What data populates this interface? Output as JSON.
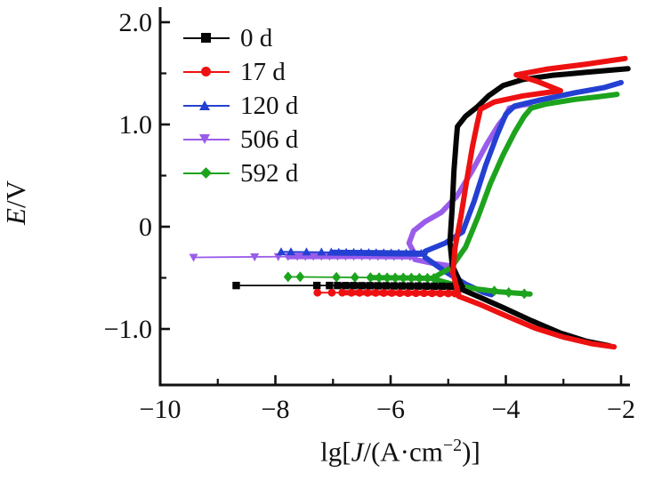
{
  "chart_data": {
    "type": "line",
    "title": "",
    "xlabel": "lg[J/(A·cm⁻²)]",
    "ylabel": "E/V",
    "xlim": [
      -10,
      -2
    ],
    "ylim": [
      -1.55,
      2.1
    ],
    "grid": false,
    "legend_position": "upper-left-inside",
    "x_ticks": {
      "major_values": [
        -10,
        -8,
        -6,
        -4,
        -2
      ],
      "major_labels": [
        "−10",
        "−8",
        "−6",
        "−4",
        "−2"
      ],
      "minor_values": [
        -9,
        -7,
        -5,
        -3
      ]
    },
    "y_ticks": {
      "major_values": [
        2.0,
        1.0,
        0,
        -1.0
      ],
      "major_labels": [
        "2.0",
        "1.0",
        "0",
        "−1.0"
      ],
      "minor_values": [
        1.5,
        0.5,
        -0.5
      ]
    },
    "xlabel_parts": {
      "prefix": "lg[",
      "var": "J",
      "mid": "/(A·cm",
      "sup": "−2",
      "suffix": ")]"
    },
    "ylabel_parts": {
      "var": "E",
      "rest": "/V"
    },
    "series": [
      {
        "label": "506 d",
        "color": "#9a5cea",
        "marker": "tri-down",
        "thin": [
          [
            -9.42,
            -0.3
          ],
          [
            -7.78,
            -0.292
          ]
        ],
        "band": [
          [
            -7.78,
            -0.292
          ],
          [
            -6.6,
            -0.29
          ],
          [
            -5.58,
            -0.295
          ]
        ],
        "anodic": [
          [
            -5.58,
            -0.27
          ],
          [
            -5.68,
            -0.16
          ],
          [
            -5.6,
            -0.04
          ],
          [
            -5.4,
            0.05
          ],
          [
            -5.12,
            0.14
          ],
          [
            -4.85,
            0.3
          ],
          [
            -4.58,
            0.55
          ],
          [
            -4.32,
            0.82
          ],
          [
            -4.12,
            1.0
          ],
          [
            -4.02,
            1.07
          ],
          [
            -3.94,
            1.16
          ],
          [
            -3.72,
            1.19
          ],
          [
            -3.58,
            1.2
          ]
        ],
        "cathodic": [
          [
            -5.58,
            -0.32
          ],
          [
            -5.25,
            -0.36
          ],
          [
            -5.0,
            -0.38
          ]
        ],
        "markers": [
          [
            -9.42,
            -0.3
          ],
          [
            -8.36,
            -0.296
          ],
          [
            -7.95,
            -0.293
          ],
          [
            -7.78,
            -0.292
          ],
          [
            -7.62,
            -0.291
          ],
          [
            -7.48,
            -0.291
          ],
          [
            -7.34,
            -0.29
          ],
          [
            -7.2,
            -0.29
          ],
          [
            -7.06,
            -0.29
          ],
          [
            -6.92,
            -0.29
          ],
          [
            -6.78,
            -0.29
          ],
          [
            -6.64,
            -0.29
          ],
          [
            -6.5,
            -0.29
          ],
          [
            -6.36,
            -0.29
          ],
          [
            -6.22,
            -0.291
          ],
          [
            -6.08,
            -0.291
          ],
          [
            -5.94,
            -0.292
          ],
          [
            -5.8,
            -0.292
          ],
          [
            -5.66,
            -0.293
          ]
        ]
      },
      {
        "label": "120 d",
        "color": "#2440d2",
        "marker": "tri-up",
        "thin": [
          [
            -7.9,
            -0.245
          ],
          [
            -7.0,
            -0.25
          ]
        ],
        "band": [
          [
            -7.0,
            -0.25
          ],
          [
            -6.2,
            -0.254
          ],
          [
            -5.4,
            -0.26
          ]
        ],
        "anodic": [
          [
            -5.4,
            -0.24
          ],
          [
            -5.05,
            -0.16
          ],
          [
            -4.75,
            -0.05
          ],
          [
            -4.55,
            0.25
          ],
          [
            -4.35,
            0.6
          ],
          [
            -4.15,
            0.9
          ],
          [
            -4.0,
            1.1
          ],
          [
            -3.85,
            1.18
          ],
          [
            -3.4,
            1.24
          ],
          [
            -2.8,
            1.31
          ],
          [
            -2.3,
            1.36
          ],
          [
            -2.0,
            1.41
          ]
        ],
        "cathodic": [
          [
            -5.4,
            -0.3
          ],
          [
            -5.05,
            -0.44
          ],
          [
            -4.7,
            -0.56
          ],
          [
            -4.4,
            -0.64
          ],
          [
            -4.25,
            -0.665
          ]
        ],
        "markers": [
          [
            -7.9,
            -0.245
          ],
          [
            -7.73,
            -0.245
          ],
          [
            -7.46,
            -0.246
          ],
          [
            -7.2,
            -0.247
          ],
          [
            -7.03,
            -0.248
          ],
          [
            -6.9,
            -0.249
          ],
          [
            -6.77,
            -0.25
          ],
          [
            -6.64,
            -0.25
          ],
          [
            -6.51,
            -0.251
          ],
          [
            -6.38,
            -0.252
          ],
          [
            -6.25,
            -0.253
          ],
          [
            -6.12,
            -0.254
          ],
          [
            -5.99,
            -0.255
          ],
          [
            -5.86,
            -0.256
          ],
          [
            -5.73,
            -0.257
          ],
          [
            -5.6,
            -0.258
          ],
          [
            -5.47,
            -0.26
          ]
        ]
      },
      {
        "label": "592 d",
        "color": "#1da31d",
        "marker": "diamond",
        "thin": [
          [
            -7.78,
            -0.49
          ],
          [
            -6.35,
            -0.497
          ]
        ],
        "band": [
          [
            -6.35,
            -0.497
          ],
          [
            -5.7,
            -0.501
          ],
          [
            -5.2,
            -0.505
          ]
        ],
        "anodic": [
          [
            -5.2,
            -0.48
          ],
          [
            -4.95,
            -0.4
          ],
          [
            -4.7,
            -0.2
          ],
          [
            -4.48,
            0.1
          ],
          [
            -4.27,
            0.42
          ],
          [
            -4.05,
            0.7
          ],
          [
            -3.85,
            0.92
          ],
          [
            -3.68,
            1.08
          ],
          [
            -3.56,
            1.16
          ],
          [
            -3.3,
            1.2
          ],
          [
            -2.8,
            1.245
          ],
          [
            -2.4,
            1.27
          ],
          [
            -2.07,
            1.295
          ]
        ],
        "cathodic": [
          [
            -5.2,
            -0.52
          ],
          [
            -4.85,
            -0.575
          ],
          [
            -4.5,
            -0.61
          ],
          [
            -4.1,
            -0.637
          ],
          [
            -3.75,
            -0.652
          ],
          [
            -3.58,
            -0.658
          ]
        ],
        "markers": [
          [
            -7.78,
            -0.49
          ],
          [
            -7.57,
            -0.49
          ],
          [
            -6.94,
            -0.494
          ],
          [
            -6.62,
            -0.496
          ],
          [
            -6.35,
            -0.497
          ],
          [
            -6.2,
            -0.498
          ],
          [
            -6.06,
            -0.499
          ],
          [
            -5.92,
            -0.5
          ],
          [
            -5.78,
            -0.5
          ],
          [
            -5.64,
            -0.501
          ],
          [
            -5.5,
            -0.502
          ],
          [
            -5.36,
            -0.503
          ],
          [
            -5.25,
            -0.504
          ],
          [
            -4.2,
            -0.628
          ],
          [
            -3.95,
            -0.643
          ],
          [
            -3.68,
            -0.655
          ]
        ]
      },
      {
        "label": "0 d",
        "color": "#050505",
        "marker": "square",
        "thin": [
          [
            -8.68,
            -0.575
          ],
          [
            -6.9,
            -0.575
          ]
        ],
        "band": [
          [
            -6.9,
            -0.575
          ],
          [
            -5.8,
            -0.579
          ],
          [
            -4.75,
            -0.585
          ]
        ],
        "anodic": [
          [
            -4.78,
            -0.56
          ],
          [
            -4.93,
            -0.38
          ],
          [
            -4.97,
            -0.15
          ],
          [
            -4.93,
            0.2
          ],
          [
            -4.9,
            0.55
          ],
          [
            -4.86,
            0.85
          ],
          [
            -4.84,
            0.98
          ],
          [
            -4.7,
            1.08
          ],
          [
            -4.5,
            1.17
          ],
          [
            -4.3,
            1.28
          ],
          [
            -4.05,
            1.38
          ],
          [
            -3.7,
            1.44
          ],
          [
            -3.2,
            1.48
          ],
          [
            -2.6,
            1.51
          ],
          [
            -1.88,
            1.545
          ]
        ],
        "cathodic": [
          [
            -4.78,
            -0.61
          ],
          [
            -4.45,
            -0.69
          ],
          [
            -4.05,
            -0.79
          ],
          [
            -3.55,
            -0.92
          ],
          [
            -3.05,
            -1.04
          ],
          [
            -2.6,
            -1.12
          ],
          [
            -2.2,
            -1.165
          ]
        ],
        "markers": [
          [
            -8.68,
            -0.575
          ],
          [
            -7.28,
            -0.575
          ],
          [
            -7.06,
            -0.575
          ],
          [
            -6.92,
            -0.575
          ],
          [
            -6.78,
            -0.576
          ],
          [
            -6.64,
            -0.576
          ],
          [
            -6.5,
            -0.577
          ],
          [
            -6.36,
            -0.577
          ],
          [
            -6.22,
            -0.578
          ],
          [
            -6.08,
            -0.578
          ],
          [
            -5.94,
            -0.579
          ],
          [
            -5.8,
            -0.579
          ],
          [
            -5.66,
            -0.58
          ],
          [
            -5.52,
            -0.58
          ],
          [
            -5.38,
            -0.581
          ],
          [
            -5.24,
            -0.582
          ],
          [
            -5.1,
            -0.582
          ],
          [
            -4.96,
            -0.583
          ],
          [
            -4.82,
            -0.584
          ]
        ]
      },
      {
        "label": "17 d",
        "color": "#ee1111",
        "marker": "circle",
        "thin": [
          [
            -7.27,
            -0.645
          ],
          [
            -6.8,
            -0.645
          ]
        ],
        "band": [
          [
            -6.8,
            -0.645
          ],
          [
            -5.8,
            -0.648
          ],
          [
            -4.82,
            -0.65
          ]
        ],
        "anodic": [
          [
            -4.84,
            -0.62
          ],
          [
            -4.92,
            -0.45
          ],
          [
            -4.88,
            -0.2
          ],
          [
            -4.78,
            0.1
          ],
          [
            -4.68,
            0.45
          ],
          [
            -4.58,
            0.78
          ],
          [
            -4.5,
            1.0
          ],
          [
            -4.44,
            1.15
          ],
          [
            -4.2,
            1.22
          ],
          [
            -3.7,
            1.28
          ],
          [
            -3.05,
            1.33
          ],
          [
            -3.45,
            1.42
          ],
          [
            -3.82,
            1.485
          ],
          [
            -3.3,
            1.54
          ],
          [
            -2.6,
            1.59
          ],
          [
            -1.93,
            1.645
          ]
        ],
        "cathodic": [
          [
            -4.82,
            -0.68
          ],
          [
            -4.45,
            -0.76
          ],
          [
            -4.0,
            -0.87
          ],
          [
            -3.5,
            -0.99
          ],
          [
            -3.0,
            -1.08
          ],
          [
            -2.5,
            -1.145
          ],
          [
            -2.12,
            -1.175
          ]
        ],
        "markers": [
          [
            -7.27,
            -0.645
          ],
          [
            -7.02,
            -0.645
          ],
          [
            -6.84,
            -0.645
          ],
          [
            -6.68,
            -0.646
          ],
          [
            -6.54,
            -0.646
          ],
          [
            -6.4,
            -0.647
          ],
          [
            -6.26,
            -0.647
          ],
          [
            -6.12,
            -0.648
          ],
          [
            -5.98,
            -0.648
          ],
          [
            -5.84,
            -0.649
          ],
          [
            -5.7,
            -0.649
          ],
          [
            -5.56,
            -0.65
          ],
          [
            -5.42,
            -0.65
          ],
          [
            -5.28,
            -0.651
          ],
          [
            -5.14,
            -0.652
          ],
          [
            -5.0,
            -0.652
          ],
          [
            -4.88,
            -0.653
          ]
        ]
      }
    ],
    "legend_order": [
      "0 d",
      "17 d",
      "120 d",
      "506 d",
      "592 d"
    ]
  },
  "legend": {
    "items": [
      {
        "label": "0 d"
      },
      {
        "label": "17 d"
      },
      {
        "label": "120 d"
      },
      {
        "label": "506 d"
      },
      {
        "label": "592 d"
      }
    ]
  }
}
